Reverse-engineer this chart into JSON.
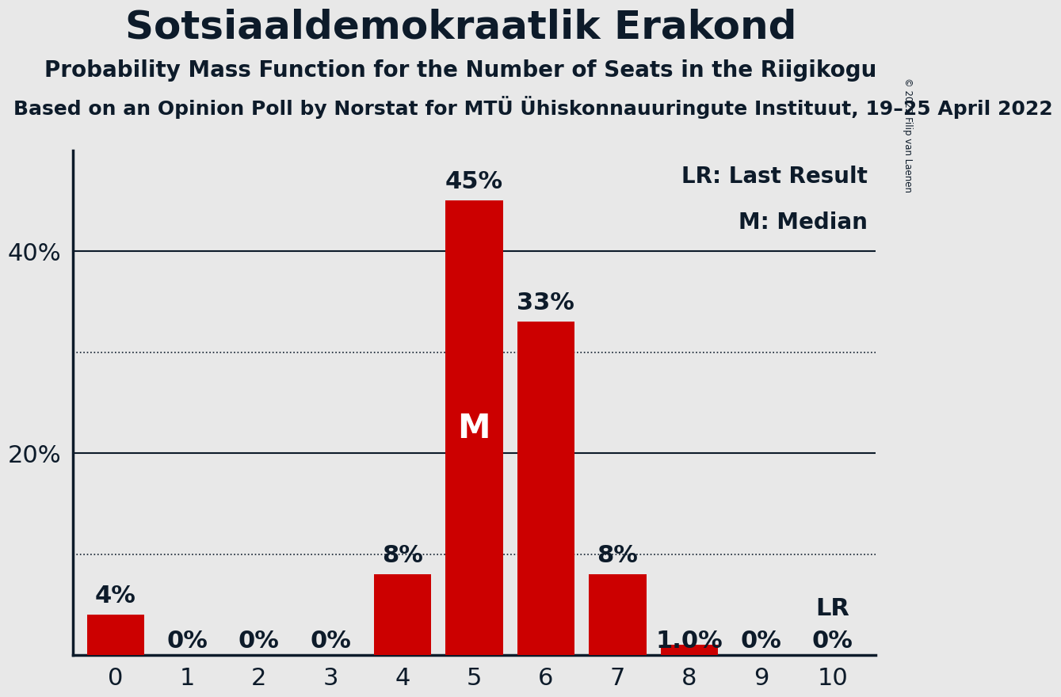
{
  "title": "Sotsiaaldemokraatlik Erakond",
  "subtitle": "Probability Mass Function for the Number of Seats in the Riigikogu",
  "subsubtitle": "Based on an Opinion Poll by Norstat for MTÜ Ühiskonnauuringute Instituut, 19–25 April 2022",
  "copyright": "© 2022 Filip van Laenen",
  "categories": [
    0,
    1,
    2,
    3,
    4,
    5,
    6,
    7,
    8,
    9,
    10
  ],
  "values": [
    4,
    0,
    0,
    0,
    8,
    45,
    33,
    8,
    1,
    0,
    0
  ],
  "bar_color": "#CC0000",
  "background_color": "#E8E8E8",
  "text_color": "#0D1B2A",
  "median_bar": 5,
  "lr_bar": 10,
  "ylim": [
    0,
    50
  ],
  "solid_gridlines": [
    20,
    40
  ],
  "dotted_gridlines": [
    10,
    30
  ],
  "bar_labels": [
    "4%",
    "0%",
    "0%",
    "0%",
    "8%",
    "45%",
    "33%",
    "8%",
    "1.0%",
    "0%",
    "0%"
  ],
  "title_fontsize": 36,
  "subtitle_fontsize": 20,
  "subsubtitle_fontsize": 18,
  "bar_label_fontsize": 22,
  "axis_tick_fontsize": 22,
  "legend_fontsize": 20,
  "median_label": "M",
  "lr_label": "LR"
}
